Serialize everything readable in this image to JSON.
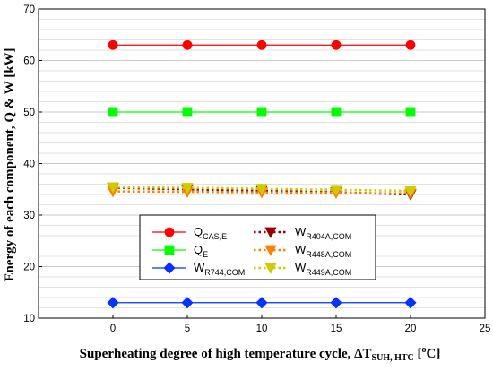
{
  "chart_data": {
    "type": "line",
    "xlabel": "Superheating degree of high temperature cycle, ΔT",
    "xlabel_sub": "SUH, HTC",
    "xlabel_unit_pre": " [",
    "xlabel_unit_sup": "o",
    "xlabel_unit_post": "C]",
    "ylabel": "Energy of each component, Q & W [kW]",
    "xlim": [
      -5,
      25
    ],
    "ylim": [
      10,
      70
    ],
    "xticks": [
      0,
      5,
      10,
      15,
      20,
      25
    ],
    "yticks": [
      10,
      20,
      30,
      40,
      50,
      60,
      70
    ],
    "grid": "horizontal",
    "legend_position": "bottom-center",
    "x": [
      0,
      5,
      10,
      15,
      20
    ],
    "series": [
      {
        "key": "qcas",
        "name_main": "Q",
        "name_sub": "CAS,E",
        "values": [
          63,
          63,
          63,
          63,
          63
        ],
        "color": "#ff0000",
        "marker": "circle",
        "line": "solid"
      },
      {
        "key": "qe",
        "name_main": "Q",
        "name_sub": "E",
        "values": [
          50,
          50,
          50,
          50,
          50
        ],
        "color": "#00ff00",
        "marker": "square",
        "line": "solid"
      },
      {
        "key": "wr744",
        "name_main": "W",
        "name_sub": "R744,COM",
        "values": [
          13,
          13,
          13,
          13,
          13
        ],
        "color": "#0033ff",
        "marker": "diamond",
        "line": "solid"
      },
      {
        "key": "wr404a",
        "name_main": "W",
        "name_sub": "R404A,COM",
        "values": [
          35.3,
          35.0,
          34.7,
          34.4,
          34.0
        ],
        "color": "#990000",
        "marker": "triangle-down",
        "line": "dotted"
      },
      {
        "key": "wr448a",
        "name_main": "W",
        "name_sub": "R448A,COM",
        "values": [
          34.6,
          34.5,
          34.4,
          34.3,
          34.2
        ],
        "color": "#ff8000",
        "marker": "triangle-down",
        "line": "dotted"
      },
      {
        "key": "wr449a",
        "name_main": "W",
        "name_sub": "R449A,COM",
        "values": [
          35.4,
          35.3,
          35.1,
          34.9,
          34.7
        ],
        "color": "#cccc00",
        "marker": "triangle-down",
        "line": "dotted"
      }
    ]
  }
}
